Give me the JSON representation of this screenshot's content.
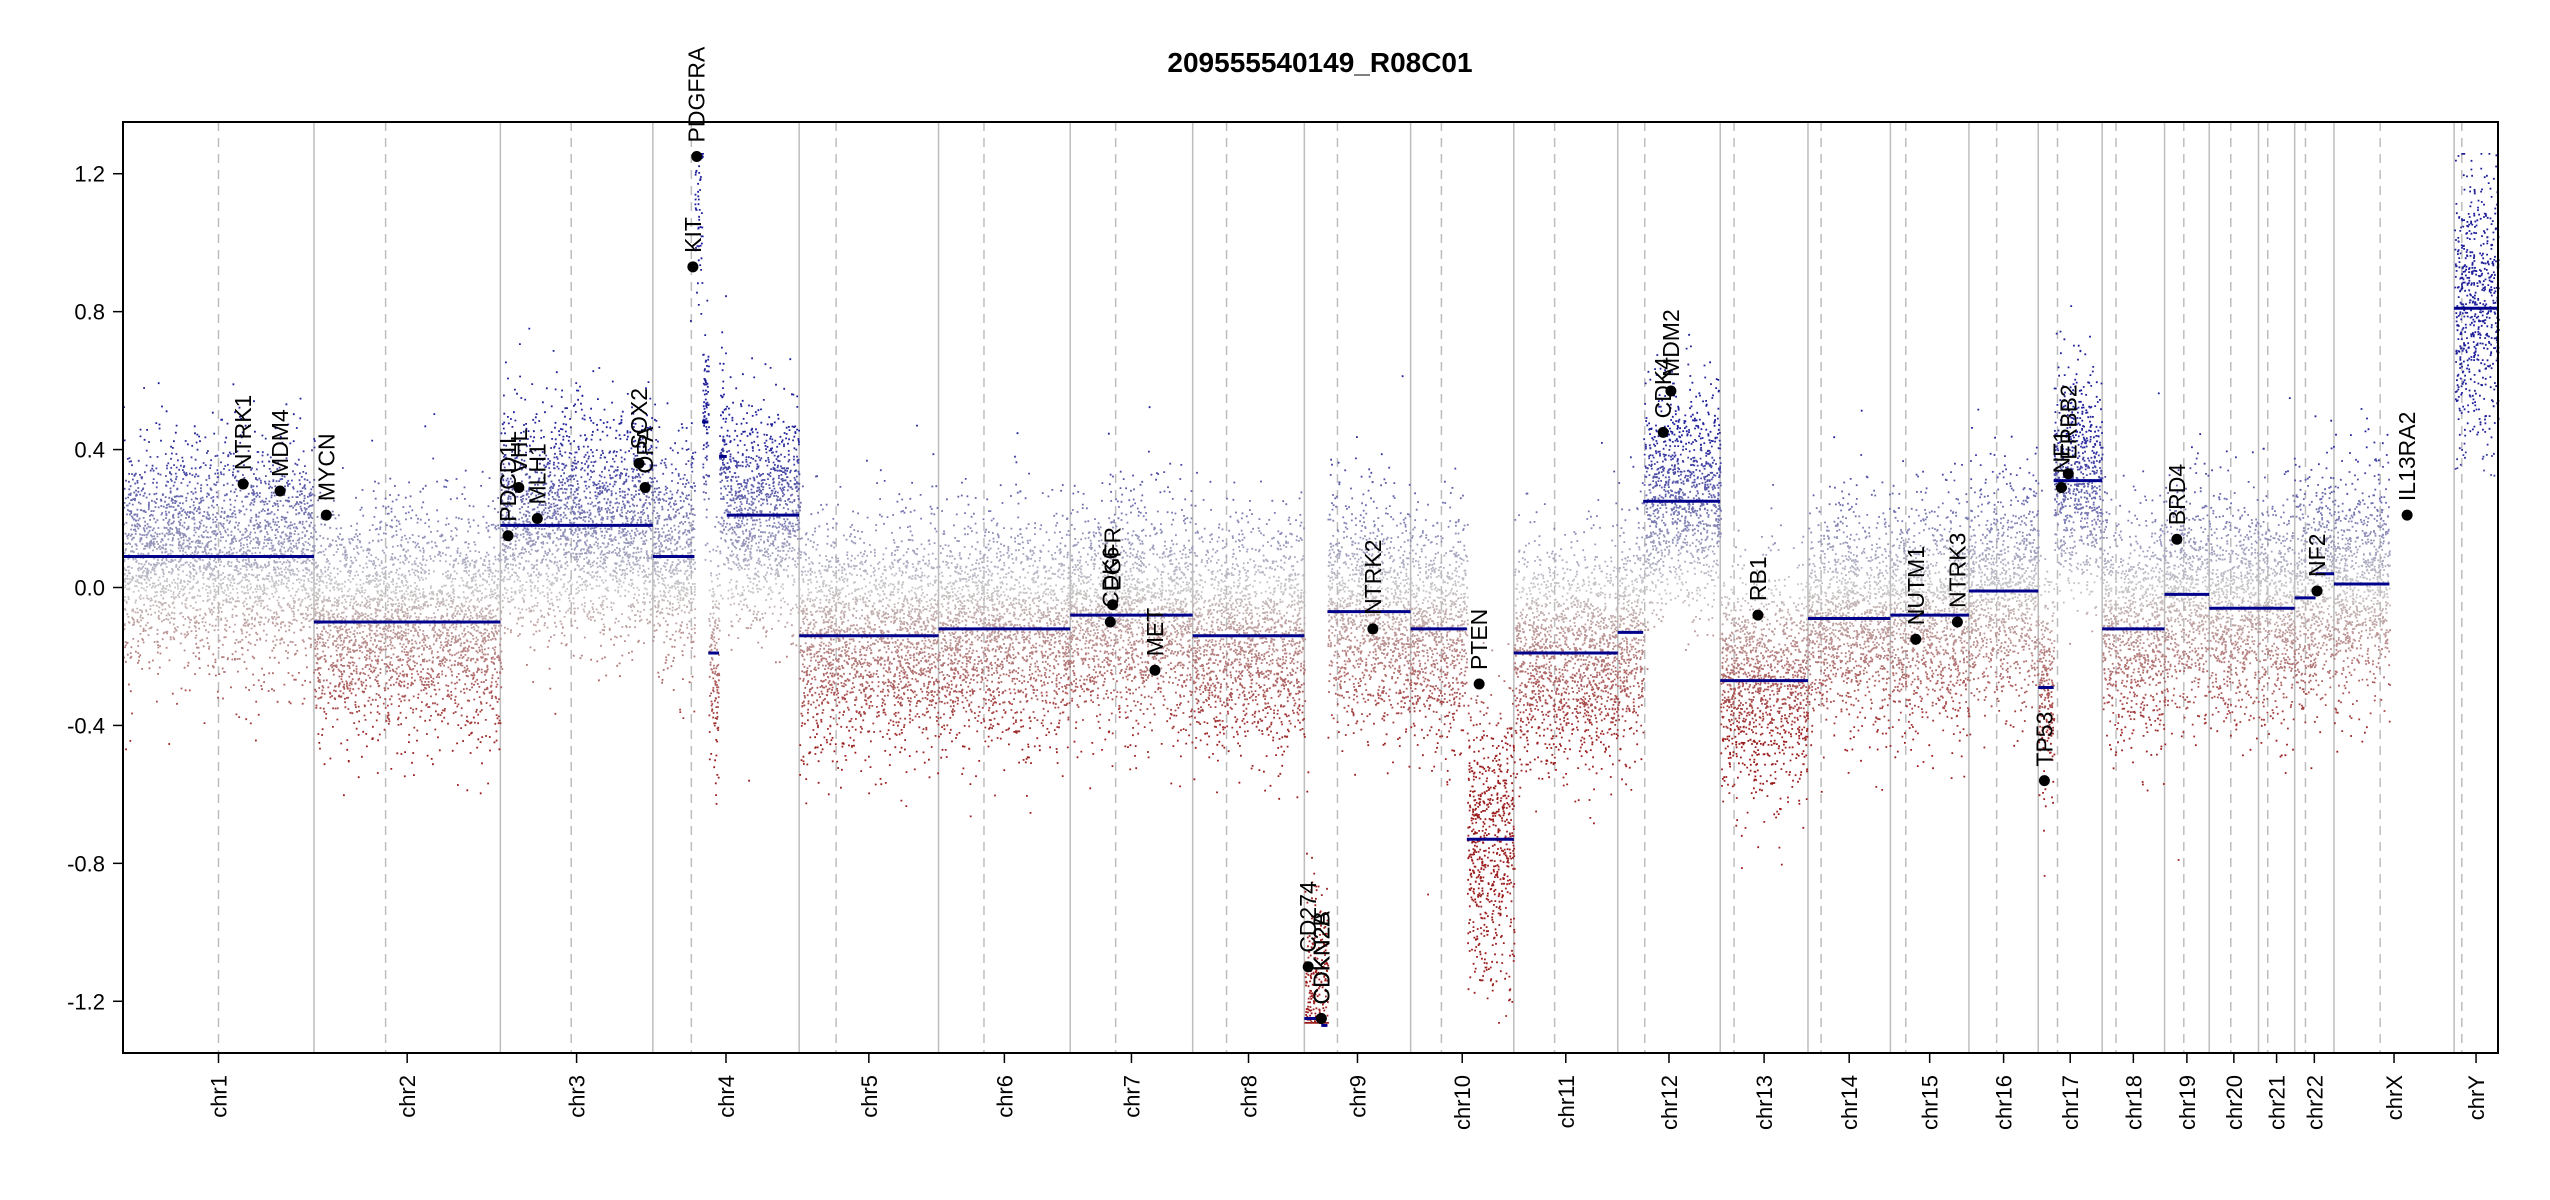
{
  "chart_data": {
    "type": "scatter",
    "title": "209555540149_R08C01",
    "xlabel": "",
    "ylabel": "",
    "ylim": [
      -1.35,
      1.35
    ],
    "y_ticks": [
      -1.2,
      -0.8,
      -0.4,
      0.0,
      0.4,
      0.8,
      1.2
    ],
    "y_tick_labels": [
      "-1.2",
      "-0.8",
      "-0.4",
      "0.0",
      "0.4",
      "0.8",
      "1.2"
    ],
    "grid": false,
    "colors": {
      "gain": "#1f1f9a",
      "loss": "#9b1c1c",
      "neutral": "#c8c8c8",
      "segment": "#00008b",
      "gene": "#000000",
      "divider": "#bdbdbd"
    },
    "chromosomes": [
      {
        "name": "chr1",
        "start": 0,
        "end": 248,
        "centromere": 124
      },
      {
        "name": "chr2",
        "start": 248,
        "end": 490,
        "centromere": 341
      },
      {
        "name": "chr3",
        "start": 490,
        "end": 688,
        "centromere": 582
      },
      {
        "name": "chr4",
        "start": 688,
        "end": 878,
        "centromere": 738
      },
      {
        "name": "chr5",
        "start": 878,
        "end": 1059,
        "centromere": 926
      },
      {
        "name": "chr6",
        "start": 1059,
        "end": 1230,
        "centromere": 1118
      },
      {
        "name": "chr7",
        "start": 1230,
        "end": 1389,
        "centromere": 1289
      },
      {
        "name": "chr8",
        "start": 1389,
        "end": 1534,
        "centromere": 1433
      },
      {
        "name": "chr9",
        "start": 1534,
        "end": 1672,
        "centromere": 1577
      },
      {
        "name": "chr10",
        "start": 1672,
        "end": 1806,
        "centromere": 1712
      },
      {
        "name": "chr11",
        "start": 1806,
        "end": 1941,
        "centromere": 1859
      },
      {
        "name": "chr12",
        "start": 1941,
        "end": 2074,
        "centromere": 1976
      },
      {
        "name": "chr13",
        "start": 2074,
        "end": 2188,
        "centromere": 2092
      },
      {
        "name": "chr14",
        "start": 2188,
        "end": 2295,
        "centromere": 2205
      },
      {
        "name": "chr15",
        "start": 2295,
        "end": 2397,
        "centromere": 2315
      },
      {
        "name": "chr16",
        "start": 2397,
        "end": 2487,
        "centromere": 2433
      },
      {
        "name": "chr17",
        "start": 2487,
        "end": 2570,
        "centromere": 2512
      },
      {
        "name": "chr18",
        "start": 2570,
        "end": 2651,
        "centromere": 2588
      },
      {
        "name": "chr19",
        "start": 2651,
        "end": 2709,
        "centromere": 2676
      },
      {
        "name": "chr20",
        "start": 2709,
        "end": 2773,
        "centromere": 2737
      },
      {
        "name": "chr21",
        "start": 2773,
        "end": 2820,
        "centromere": 2785
      },
      {
        "name": "chr22",
        "start": 2820,
        "end": 2871,
        "centromere": 2834
      },
      {
        "name": "chrX",
        "start": 2871,
        "end": 3027,
        "centromere": 2931
      },
      {
        "name": "chrY",
        "start": 3027,
        "end": 3084,
        "centromere": 3037
      }
    ],
    "segments": [
      {
        "chr": "chr1",
        "start": 0,
        "end": 248,
        "value": 0.09
      },
      {
        "chr": "chr2",
        "start": 248,
        "end": 490,
        "value": -0.1
      },
      {
        "chr": "chr3",
        "start": 490,
        "end": 688,
        "value": 0.18
      },
      {
        "chr": "chr4",
        "start": 688,
        "end": 742,
        "value": 0.09
      },
      {
        "chr": "chr4",
        "start": 742,
        "end": 752,
        "value": 1.25
      },
      {
        "chr": "chr4",
        "start": 752,
        "end": 760,
        "value": 0.48
      },
      {
        "chr": "chr4",
        "start": 760,
        "end": 774,
        "value": -0.19
      },
      {
        "chr": "chr4",
        "start": 774,
        "end": 784,
        "value": 0.38
      },
      {
        "chr": "chr4",
        "start": 784,
        "end": 878,
        "value": 0.21
      },
      {
        "chr": "chr5",
        "start": 878,
        "end": 1059,
        "value": -0.14
      },
      {
        "chr": "chr6",
        "start": 1059,
        "end": 1230,
        "value": -0.12
      },
      {
        "chr": "chr7",
        "start": 1230,
        "end": 1389,
        "value": -0.08
      },
      {
        "chr": "chr8",
        "start": 1389,
        "end": 1534,
        "value": -0.14
      },
      {
        "chr": "chr9",
        "start": 1534,
        "end": 1556,
        "value": -1.25
      },
      {
        "chr": "chr9",
        "start": 1556,
        "end": 1564,
        "value": -1.27
      },
      {
        "chr": "chr9",
        "start": 1564,
        "end": 1672,
        "value": -0.07
      },
      {
        "chr": "chr10",
        "start": 1672,
        "end": 1745,
        "value": -0.12
      },
      {
        "chr": "chr10",
        "start": 1745,
        "end": 1806,
        "value": -0.73
      },
      {
        "chr": "chr11",
        "start": 1806,
        "end": 1941,
        "value": -0.19
      },
      {
        "chr": "chr12",
        "start": 1941,
        "end": 1974,
        "value": -0.13
      },
      {
        "chr": "chr12",
        "start": 1974,
        "end": 2074,
        "value": 0.25
      },
      {
        "chr": "chr13",
        "start": 2074,
        "end": 2188,
        "value": -0.27
      },
      {
        "chr": "chr14",
        "start": 2188,
        "end": 2295,
        "value": -0.09
      },
      {
        "chr": "chr15",
        "start": 2295,
        "end": 2397,
        "value": -0.08
      },
      {
        "chr": "chr16",
        "start": 2397,
        "end": 2487,
        "value": -0.01
      },
      {
        "chr": "chr17",
        "start": 2487,
        "end": 2507,
        "value": -0.29
      },
      {
        "chr": "chr17",
        "start": 2507,
        "end": 2570,
        "value": 0.31
      },
      {
        "chr": "chr18",
        "start": 2570,
        "end": 2651,
        "value": -0.12
      },
      {
        "chr": "chr19",
        "start": 2651,
        "end": 2709,
        "value": -0.02
      },
      {
        "chr": "chr20",
        "start": 2709,
        "end": 2773,
        "value": -0.06
      },
      {
        "chr": "chr21",
        "start": 2773,
        "end": 2820,
        "value": -0.06
      },
      {
        "chr": "chr22",
        "start": 2820,
        "end": 2847,
        "value": -0.03
      },
      {
        "chr": "chr22",
        "start": 2847,
        "end": 2871,
        "value": 0.04
      },
      {
        "chr": "chrX",
        "start": 2871,
        "end": 2943,
        "value": 0.01
      },
      {
        "chr": "chrY",
        "start": 3027,
        "end": 3084,
        "value": 0.81
      }
    ],
    "genes": [
      {
        "name": "NTRK1",
        "pos": 156,
        "value": 0.3
      },
      {
        "name": "MDM4",
        "pos": 204,
        "value": 0.28
      },
      {
        "name": "MYCN",
        "pos": 264,
        "value": 0.21
      },
      {
        "name": "PDCD1L",
        "pos": 500,
        "value": 0.15
      },
      {
        "name": "VHL",
        "pos": 514,
        "value": 0.29
      },
      {
        "name": "MLH1",
        "pos": 538,
        "value": 0.2
      },
      {
        "name": "SOX2",
        "pos": 670,
        "value": 0.36
      },
      {
        "name": "OPA",
        "pos": 678,
        "value": 0.29
      },
      {
        "name": "KIT",
        "pos": 740,
        "value": 0.93
      },
      {
        "name": "PDGFRA",
        "pos": 745,
        "value": 1.25
      },
      {
        "name": "EGFR",
        "pos": 1285,
        "value": -0.05
      },
      {
        "name": "CDK6",
        "pos": 1282,
        "value": -0.1
      },
      {
        "name": "MET",
        "pos": 1340,
        "value": -0.24
      },
      {
        "name": "CD274",
        "pos": 1539,
        "value": -1.1
      },
      {
        "name": "CDKN2B",
        "pos": 1556,
        "value": -1.25
      },
      {
        "name": "CDKN2A",
        "pos": 1556,
        "value": -1.25
      },
      {
        "name": "NTRK2",
        "pos": 1623,
        "value": -0.12
      },
      {
        "name": "PTEN",
        "pos": 1761,
        "value": -0.28
      },
      {
        "name": "CDK4",
        "pos": 2000,
        "value": 0.45
      },
      {
        "name": "MDM2",
        "pos": 2010,
        "value": 0.57
      },
      {
        "name": "RB1",
        "pos": 2123,
        "value": -0.08
      },
      {
        "name": "NUTM1",
        "pos": 2328,
        "value": -0.15
      },
      {
        "name": "NTRK3",
        "pos": 2382,
        "value": -0.1
      },
      {
        "name": "TP53",
        "pos": 2495,
        "value": -0.56
      },
      {
        "name": "NF1",
        "pos": 2517,
        "value": 0.29
      },
      {
        "name": "ERBB2",
        "pos": 2526,
        "value": 0.33
      },
      {
        "name": "BRD4",
        "pos": 2667,
        "value": 0.14
      },
      {
        "name": "NF2",
        "pos": 2849,
        "value": -0.01
      },
      {
        "name": "IL13RA2",
        "pos": 2966,
        "value": 0.21
      }
    ]
  }
}
